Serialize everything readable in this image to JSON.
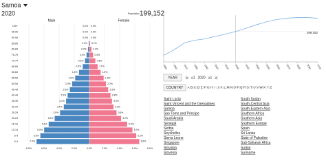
{
  "header": {
    "country": "Samoa",
    "year": "2020",
    "population_label": "Population",
    "population": "199,152"
  },
  "chart_data": [
    {
      "type": "pyramid",
      "categories": [
        "0-4",
        "5-9",
        "10-14",
        "15-19",
        "20-24",
        "25-29",
        "30-34",
        "35-39",
        "40-44",
        "45-49",
        "50-54",
        "55-59",
        "60-64",
        "65-69",
        "70-74",
        "75-79",
        "80-84",
        "85-89",
        "90-94",
        "95-99",
        "100+"
      ],
      "series": [
        {
          "name": "Male",
          "color": "#4a86c0",
          "side": "left",
          "values": [
            7.0,
            6.5,
            6.0,
            5.4,
            4.6,
            3.9,
            3.4,
            3.1,
            2.9,
            2.6,
            2.3,
            1.9,
            1.4,
            0.9,
            0.6,
            0.4,
            0.2,
            0.1,
            0.0,
            0.0,
            0.0
          ],
          "value_labels": [
            "7.0%",
            "6.5%",
            "6.0%",
            "5.4%",
            "4.6%",
            "3.9%",
            "3.4%",
            "3.1%",
            "2.9%",
            "2.6%",
            "2.3%",
            "1.9%",
            "1.4%",
            "0.9%",
            "0.6%",
            "0.4%",
            "0.2%",
            "0.1%",
            "0.0%",
            "0.0%",
            "0.0%"
          ]
        },
        {
          "name": "Female",
          "color": "#f07890",
          "side": "right",
          "values": [
            6.6,
            6.2,
            5.7,
            5.0,
            4.2,
            3.6,
            3.2,
            3.0,
            2.8,
            2.5,
            2.2,
            1.9,
            1.5,
            1.1,
            0.8,
            0.5,
            0.3,
            0.1,
            0.0,
            0.0,
            0.0
          ],
          "value_labels": [
            "6.6%",
            "6.2%",
            "5.7%",
            "5.0%",
            "4.2%",
            "3.6%",
            "3.2%",
            "3.0%",
            "2.8%",
            "2.5%",
            "2.2%",
            "1.9%",
            "1.5%",
            "1.1%",
            "0.8%",
            "0.5%",
            "0.3%",
            "0.1%",
            "0.0%",
            "0.0%",
            "0.0%"
          ]
        }
      ],
      "xlim": [
        -8,
        8
      ],
      "xticks": [
        {
          "value": -8,
          "label": "8.0%"
        },
        {
          "value": -6,
          "label": "6.0%"
        },
        {
          "value": -4,
          "label": "4.0%"
        },
        {
          "value": -2,
          "label": "2.0%"
        },
        {
          "value": 0,
          "label": "0.0%"
        },
        {
          "value": 2,
          "label": "2.0%"
        },
        {
          "value": 4,
          "label": "4.0%"
        },
        {
          "value": 6,
          "label": "6.0%"
        },
        {
          "value": 8,
          "label": "8.0%"
        }
      ],
      "grid": true
    },
    {
      "type": "line",
      "x": [
        1950,
        1960,
        1970,
        1980,
        1990,
        2000,
        2010,
        2020,
        2030,
        2040,
        2050,
        2060,
        2070,
        2080,
        2090,
        2100
      ],
      "series": [
        {
          "name": "Population",
          "color": "#7fb0e0",
          "values": [
            82000,
            109000,
            143000,
            156000,
            163000,
            175000,
            186000,
            199152,
            215000,
            232000,
            247000,
            258000,
            265000,
            268000,
            268000,
            265000
          ]
        }
      ],
      "xlim": [
        1950,
        2100
      ],
      "ylim": [
        50000,
        280000
      ],
      "xticks": [
        1950,
        1960,
        1970,
        1980,
        1990,
        2000,
        2010,
        2020,
        2030,
        2040,
        2050,
        2060,
        2070,
        2080,
        2090,
        2100
      ],
      "highlight_index": 7
    }
  ],
  "controls": {
    "year_button": "YEAR",
    "year_nav": [
      "|≤",
      "≤1",
      "2020",
      "≥1",
      "≥|"
    ],
    "country_button": "COUNTRY",
    "letters": [
      "A",
      "B",
      "C",
      "D",
      "E",
      "F",
      "G",
      "H",
      "I",
      "J",
      "K",
      "L",
      "M",
      "N",
      "O",
      "P",
      "Q",
      "R",
      "S",
      "T",
      "U",
      "V",
      "W",
      "X",
      "Y",
      "Z"
    ]
  },
  "countries": {
    "left": [
      "Saint Lucia",
      "Saint Vincent and the Grenadines",
      "Samoa",
      "Sao Tome and Principe",
      "Saudi Arabia",
      "Senegal",
      "Serbia",
      "Seychelles",
      "Sierra Leone",
      "Singapore",
      "Slovakia",
      "Slovenia"
    ],
    "right": [
      "South Sudan",
      "South-Central Asia",
      "South-Eastern Asia",
      "Southern Africa",
      "Southern Asia",
      "Southern Europe",
      "Spain",
      "Sri Lanka",
      "State of Palestine",
      "Sub-Saharan Africa",
      "Sudan",
      "Suriname"
    ]
  }
}
